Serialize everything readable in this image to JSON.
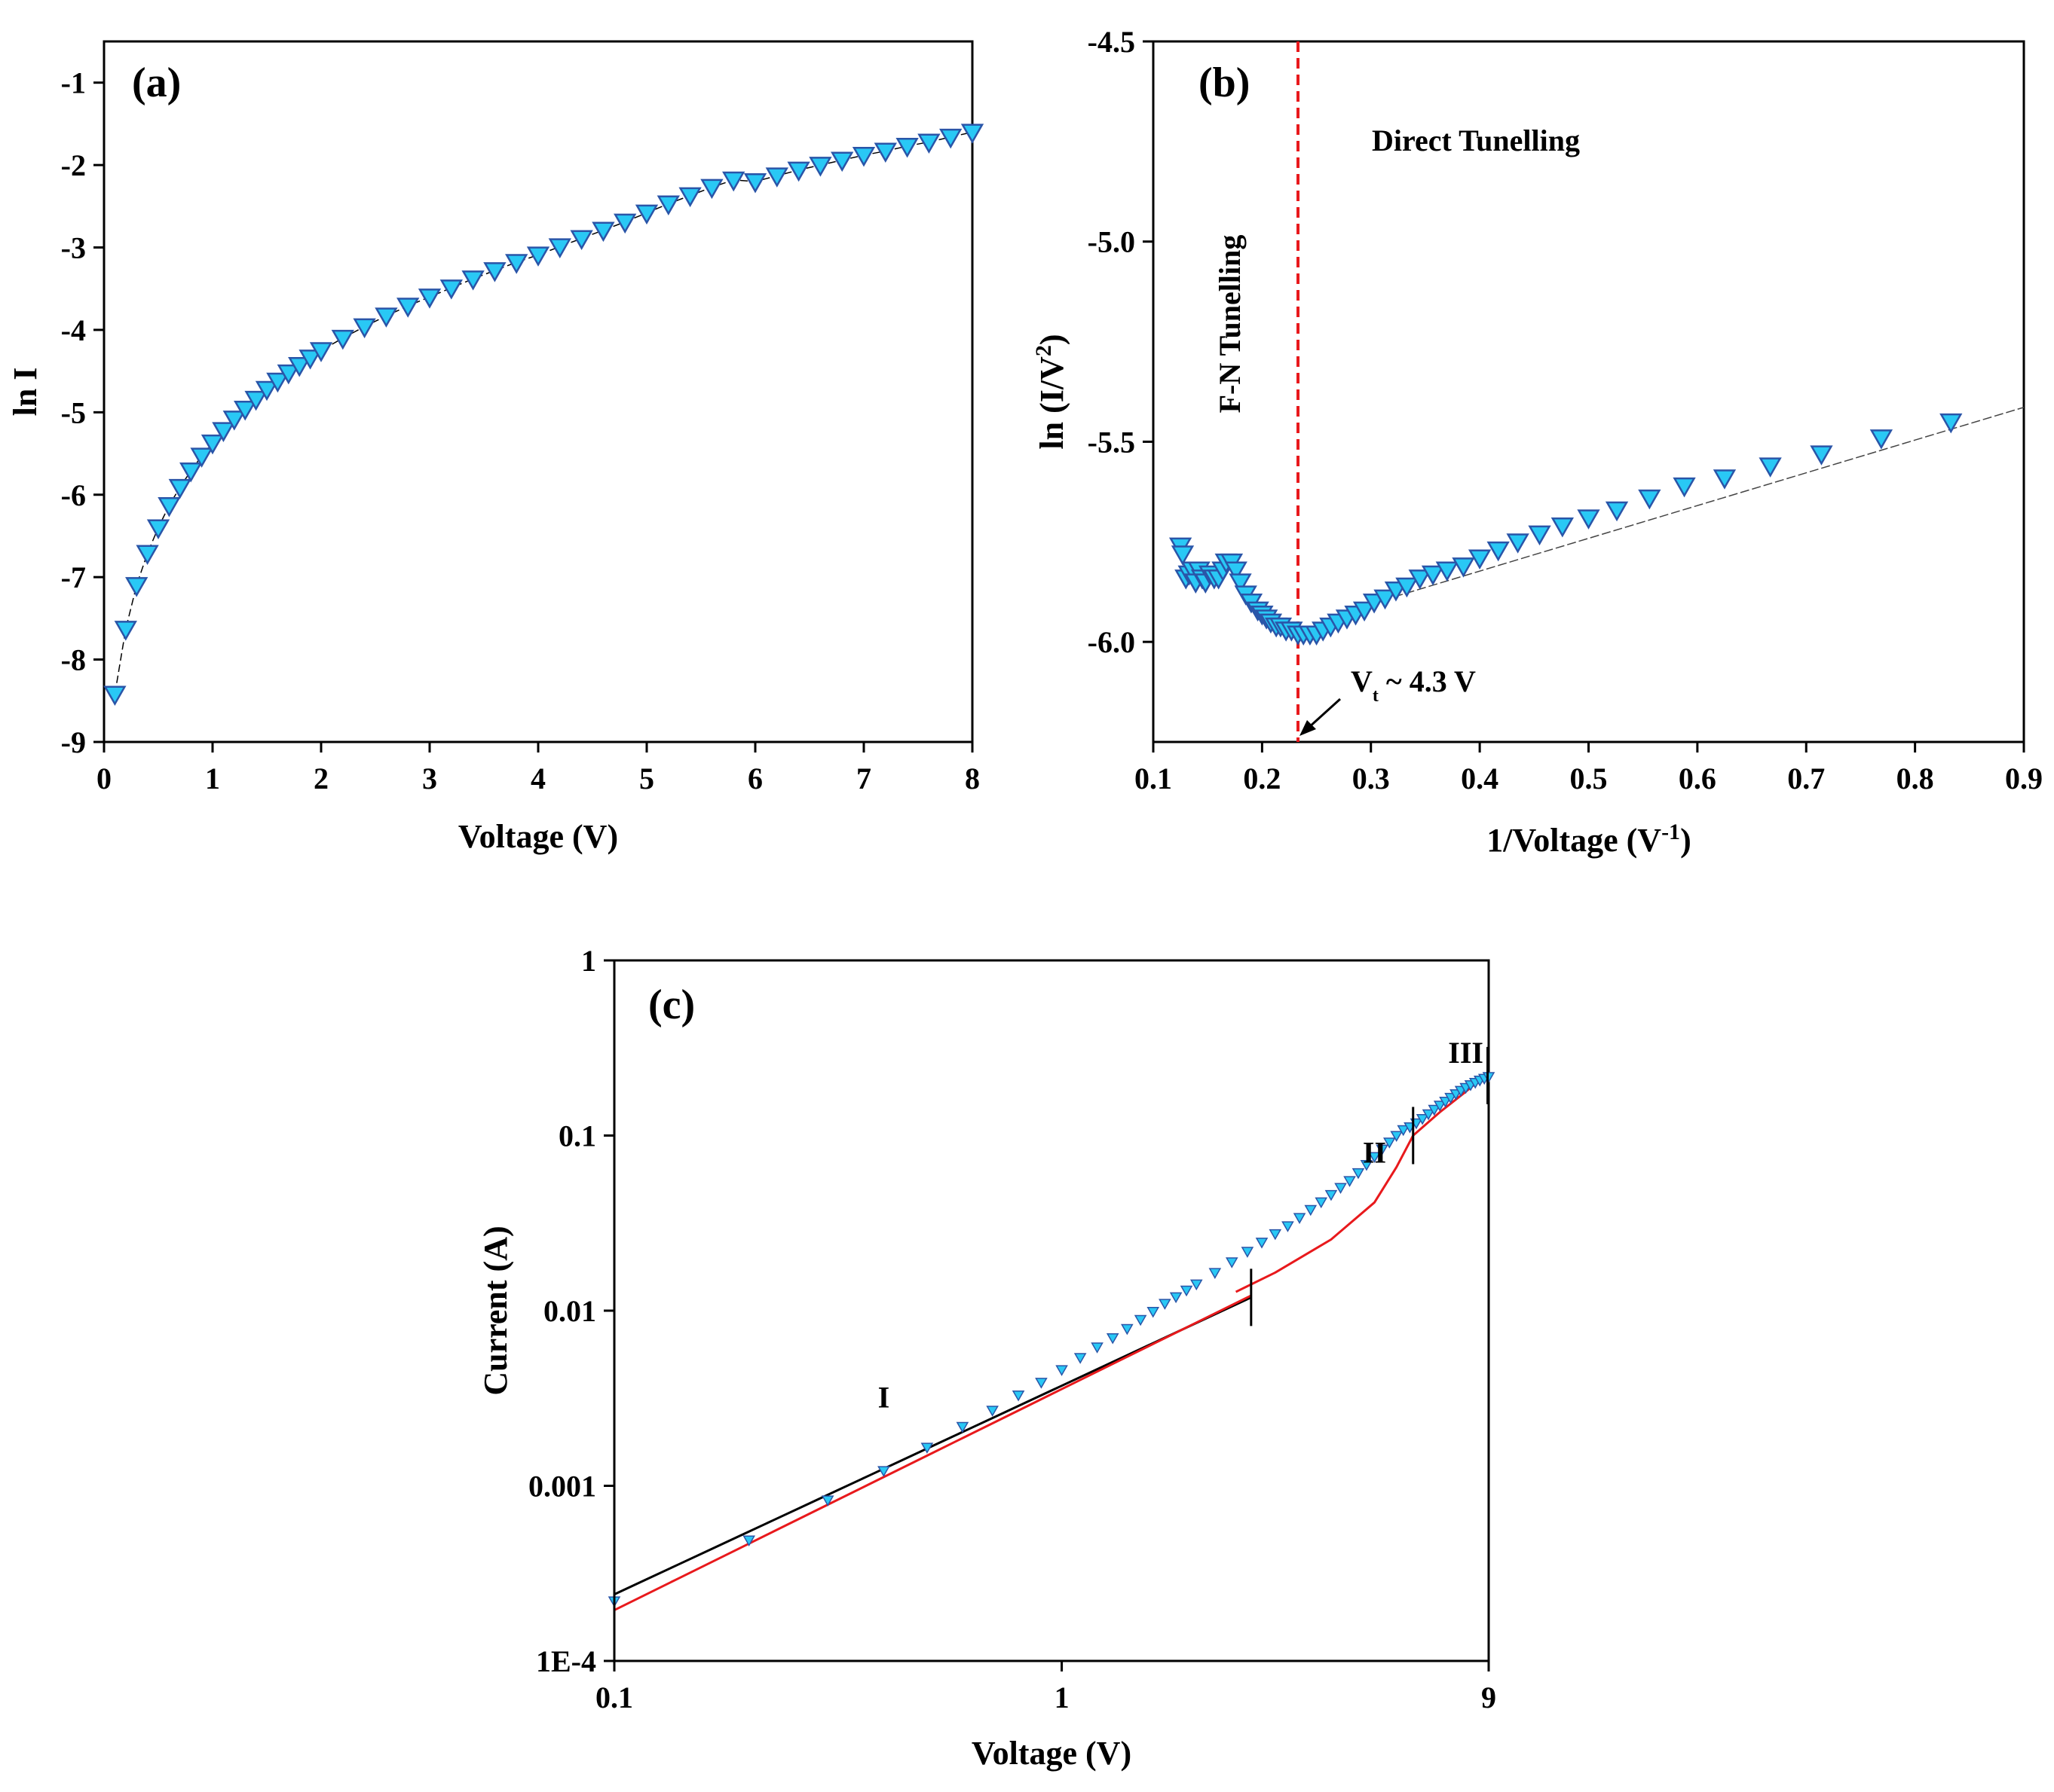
{
  "chart_data": [
    {
      "panel": "(a)",
      "type": "scatter",
      "xlabel": "Voltage (V)",
      "ylabel": "ln I",
      "xlim": [
        0,
        8
      ],
      "ylim": [
        -9,
        -0.5
      ],
      "xticks": [
        0,
        1,
        2,
        3,
        4,
        5,
        6,
        7,
        8
      ],
      "xtick_labels": [
        "0",
        "1",
        "2",
        "3",
        "4",
        "5",
        "6",
        "7",
        "8"
      ],
      "yticks": [
        -9,
        -8,
        -7,
        -6,
        -5,
        -4,
        -3,
        -2,
        -1
      ],
      "ytick_labels": [
        "-9",
        "-8",
        "-7",
        "-6",
        "-5",
        "-4",
        "-3",
        "-2",
        "-1"
      ],
      "series": [
        {
          "name": "ln I",
          "x": [
            0.1,
            0.2,
            0.3,
            0.4,
            0.5,
            0.6,
            0.7,
            0.8,
            0.9,
            1.0,
            1.1,
            1.2,
            1.3,
            1.4,
            1.5,
            1.6,
            1.7,
            1.8,
            1.9,
            2.0,
            2.2,
            2.4,
            2.6,
            2.8,
            3.0,
            3.2,
            3.4,
            3.6,
            3.8,
            4.0,
            4.2,
            4.4,
            4.6,
            4.8,
            5.0,
            5.2,
            5.4,
            5.6,
            5.8,
            6.0,
            6.2,
            6.4,
            6.6,
            6.8,
            7.0,
            7.2,
            7.4,
            7.6,
            7.8,
            8.0
          ],
          "y": [
            -8.42,
            -7.63,
            -7.1,
            -6.71,
            -6.4,
            -6.13,
            -5.91,
            -5.71,
            -5.53,
            -5.37,
            -5.22,
            -5.08,
            -4.96,
            -4.84,
            -4.72,
            -4.62,
            -4.52,
            -4.43,
            -4.34,
            -4.25,
            -4.1,
            -3.96,
            -3.83,
            -3.71,
            -3.6,
            -3.49,
            -3.38,
            -3.28,
            -3.18,
            -3.09,
            -2.99,
            -2.89,
            -2.79,
            -2.69,
            -2.58,
            -2.47,
            -2.37,
            -2.27,
            -2.18,
            -2.2,
            -2.13,
            -2.06,
            -2.0,
            -1.94,
            -1.88,
            -1.83,
            -1.77,
            -1.72,
            -1.66,
            -1.6
          ]
        }
      ]
    },
    {
      "panel": "(b)",
      "type": "scatter",
      "xlabel": "1/Voltage (V-1)",
      "xlabel_base": "1/Voltage (V",
      "xlabel_sup": "-1",
      "xlabel_tail": ")",
      "ylabel": "ln (I/V2)",
      "ylabel_base": "ln (I/V",
      "ylabel_sup": "2",
      "ylabel_tail": ")",
      "xlim": [
        0.1,
        0.9
      ],
      "ylim": [
        -6.25,
        -4.5
      ],
      "xticks": [
        0.1,
        0.2,
        0.3,
        0.4,
        0.5,
        0.6,
        0.7,
        0.8,
        0.9
      ],
      "xtick_labels": [
        "0.1",
        "0.2",
        "0.3",
        "0.4",
        "0.5",
        "0.6",
        "0.7",
        "0.8",
        "0.9"
      ],
      "yticks": [
        -6.0,
        -5.5,
        -5.0,
        -4.5
      ],
      "ytick_labels": [
        "-6.0",
        "-5.5",
        "-5.0",
        "-4.5"
      ],
      "vline_x": 0.233,
      "vline_color": "#e8191c",
      "annotations": {
        "direct": "Direct Tunelling",
        "fn": "F-N Tunelling",
        "vt_base": "V",
        "vt_sub": "t",
        "vt_tail": " ~ 4.3 V"
      },
      "series": [
        {
          "name": "ln (I/V2)",
          "x": [
            0.125,
            0.127,
            0.13,
            0.133,
            0.136,
            0.139,
            0.142,
            0.145,
            0.148,
            0.152,
            0.156,
            0.16,
            0.164,
            0.167,
            0.172,
            0.176,
            0.18,
            0.185,
            0.19,
            0.196,
            0.2,
            0.204,
            0.208,
            0.213,
            0.217,
            0.222,
            0.227,
            0.233,
            0.238,
            0.244,
            0.25,
            0.256,
            0.263,
            0.27,
            0.278,
            0.286,
            0.294,
            0.303,
            0.313,
            0.323,
            0.333,
            0.345,
            0.357,
            0.37,
            0.385,
            0.4,
            0.417,
            0.435,
            0.455,
            0.476,
            0.5,
            0.526,
            0.556,
            0.588,
            0.625,
            0.667,
            0.714,
            0.769,
            0.833
          ],
          "y": [
            -5.76,
            -5.78,
            -5.84,
            -5.83,
            -5.82,
            -5.85,
            -5.82,
            -5.84,
            -5.85,
            -5.83,
            -5.84,
            -5.84,
            -5.82,
            -5.8,
            -5.8,
            -5.82,
            -5.85,
            -5.88,
            -5.9,
            -5.92,
            -5.93,
            -5.94,
            -5.95,
            -5.96,
            -5.96,
            -5.97,
            -5.97,
            -5.98,
            -5.98,
            -5.98,
            -5.98,
            -5.97,
            -5.96,
            -5.95,
            -5.94,
            -5.93,
            -5.92,
            -5.9,
            -5.89,
            -5.87,
            -5.86,
            -5.84,
            -5.83,
            -5.82,
            -5.81,
            -5.79,
            -5.77,
            -5.75,
            -5.73,
            -5.71,
            -5.69,
            -5.67,
            -5.64,
            -5.61,
            -5.59,
            -5.56,
            -5.53,
            -5.49,
            -5.45
          ],
          "fit_line": {
            "x": [
              0.3,
              0.9
            ],
            "y": [
              -5.905,
              -5.414
            ]
          }
        }
      ]
    },
    {
      "panel": "(c)",
      "type": "scatter",
      "xscale": "log",
      "yscale": "log",
      "xlabel": "Voltage (V)",
      "ylabel": "Current (A)",
      "xlim": [
        0.1,
        9
      ],
      "ylim": [
        0.0001,
        1
      ],
      "xticks": [
        0.1,
        1,
        9
      ],
      "xtick_labels": [
        "0.1",
        "1",
        "9"
      ],
      "yticks": [
        0.0001,
        0.001,
        0.01,
        0.1,
        1
      ],
      "ytick_labels": [
        "1E-4",
        "0.001",
        "0.01",
        "0.1",
        "1"
      ],
      "region_labels": [
        "I",
        "II",
        "III"
      ],
      "region_label_positions": [
        {
          "x": 0.4,
          "y": 0.0028
        },
        {
          "x": 5.0,
          "y": 0.07
        },
        {
          "x": 8.0,
          "y": 0.26
        }
      ],
      "region_boundaries": [
        0.1,
        2.65,
        6.1,
        8.95
      ],
      "series": [
        {
          "name": "Current",
          "x": [
            0.1,
            0.2,
            0.3,
            0.4,
            0.5,
            0.6,
            0.7,
            0.8,
            0.9,
            1.0,
            1.1,
            1.2,
            1.3,
            1.4,
            1.5,
            1.6,
            1.7,
            1.8,
            1.9,
            2.0,
            2.2,
            2.4,
            2.6,
            2.8,
            3.0,
            3.2,
            3.4,
            3.6,
            3.8,
            4.0,
            4.2,
            4.4,
            4.6,
            4.8,
            5.0,
            5.2,
            5.4,
            5.6,
            5.8,
            6.0,
            6.2,
            6.4,
            6.6,
            6.8,
            7.0,
            7.2,
            7.4,
            7.6,
            7.8,
            8.0,
            8.2,
            8.4,
            8.6,
            8.8,
            9.0
          ],
          "y": [
            0.00022,
            0.00049,
            0.00083,
            0.00122,
            0.00166,
            0.00218,
            0.0027,
            0.0033,
            0.0039,
            0.0046,
            0.0054,
            0.0062,
            0.007,
            0.0079,
            0.0089,
            0.0099,
            0.011,
            0.012,
            0.0131,
            0.0142,
            0.0165,
            0.019,
            0.0218,
            0.0246,
            0.0275,
            0.0305,
            0.034,
            0.0378,
            0.0418,
            0.046,
            0.0505,
            0.0553,
            0.0613,
            0.0683,
            0.0758,
            0.0837,
            0.0917,
            0.1,
            0.108,
            0.112,
            0.118,
            0.125,
            0.133,
            0.141,
            0.149,
            0.157,
            0.165,
            0.173,
            0.181,
            0.188,
            0.195,
            0.201,
            0.207,
            0.212,
            0.217
          ]
        }
      ],
      "fits": [
        {
          "name": "region I (black)",
          "color": "#000000",
          "x": [
            0.1,
            2.65
          ],
          "y": [
            0.00024,
            0.0119
          ]
        },
        {
          "name": "region I (red)",
          "color": "#e8191c",
          "x": [
            0.1,
            2.65
          ],
          "y": [
            0.000195,
            0.0122
          ]
        },
        {
          "name": "region II (red)",
          "color": "#e8191c",
          "x": [
            2.45,
            3.0,
            4.0,
            5.0,
            5.6,
            6.1
          ],
          "y": [
            0.0128,
            0.0165,
            0.0255,
            0.0415,
            0.066,
            0.1
          ]
        },
        {
          "name": "region III (red)",
          "color": "#e8191c",
          "x": [
            6.1,
            7.0,
            8.0,
            8.95
          ],
          "y": [
            0.1,
            0.136,
            0.178,
            0.226
          ]
        }
      ]
    }
  ]
}
